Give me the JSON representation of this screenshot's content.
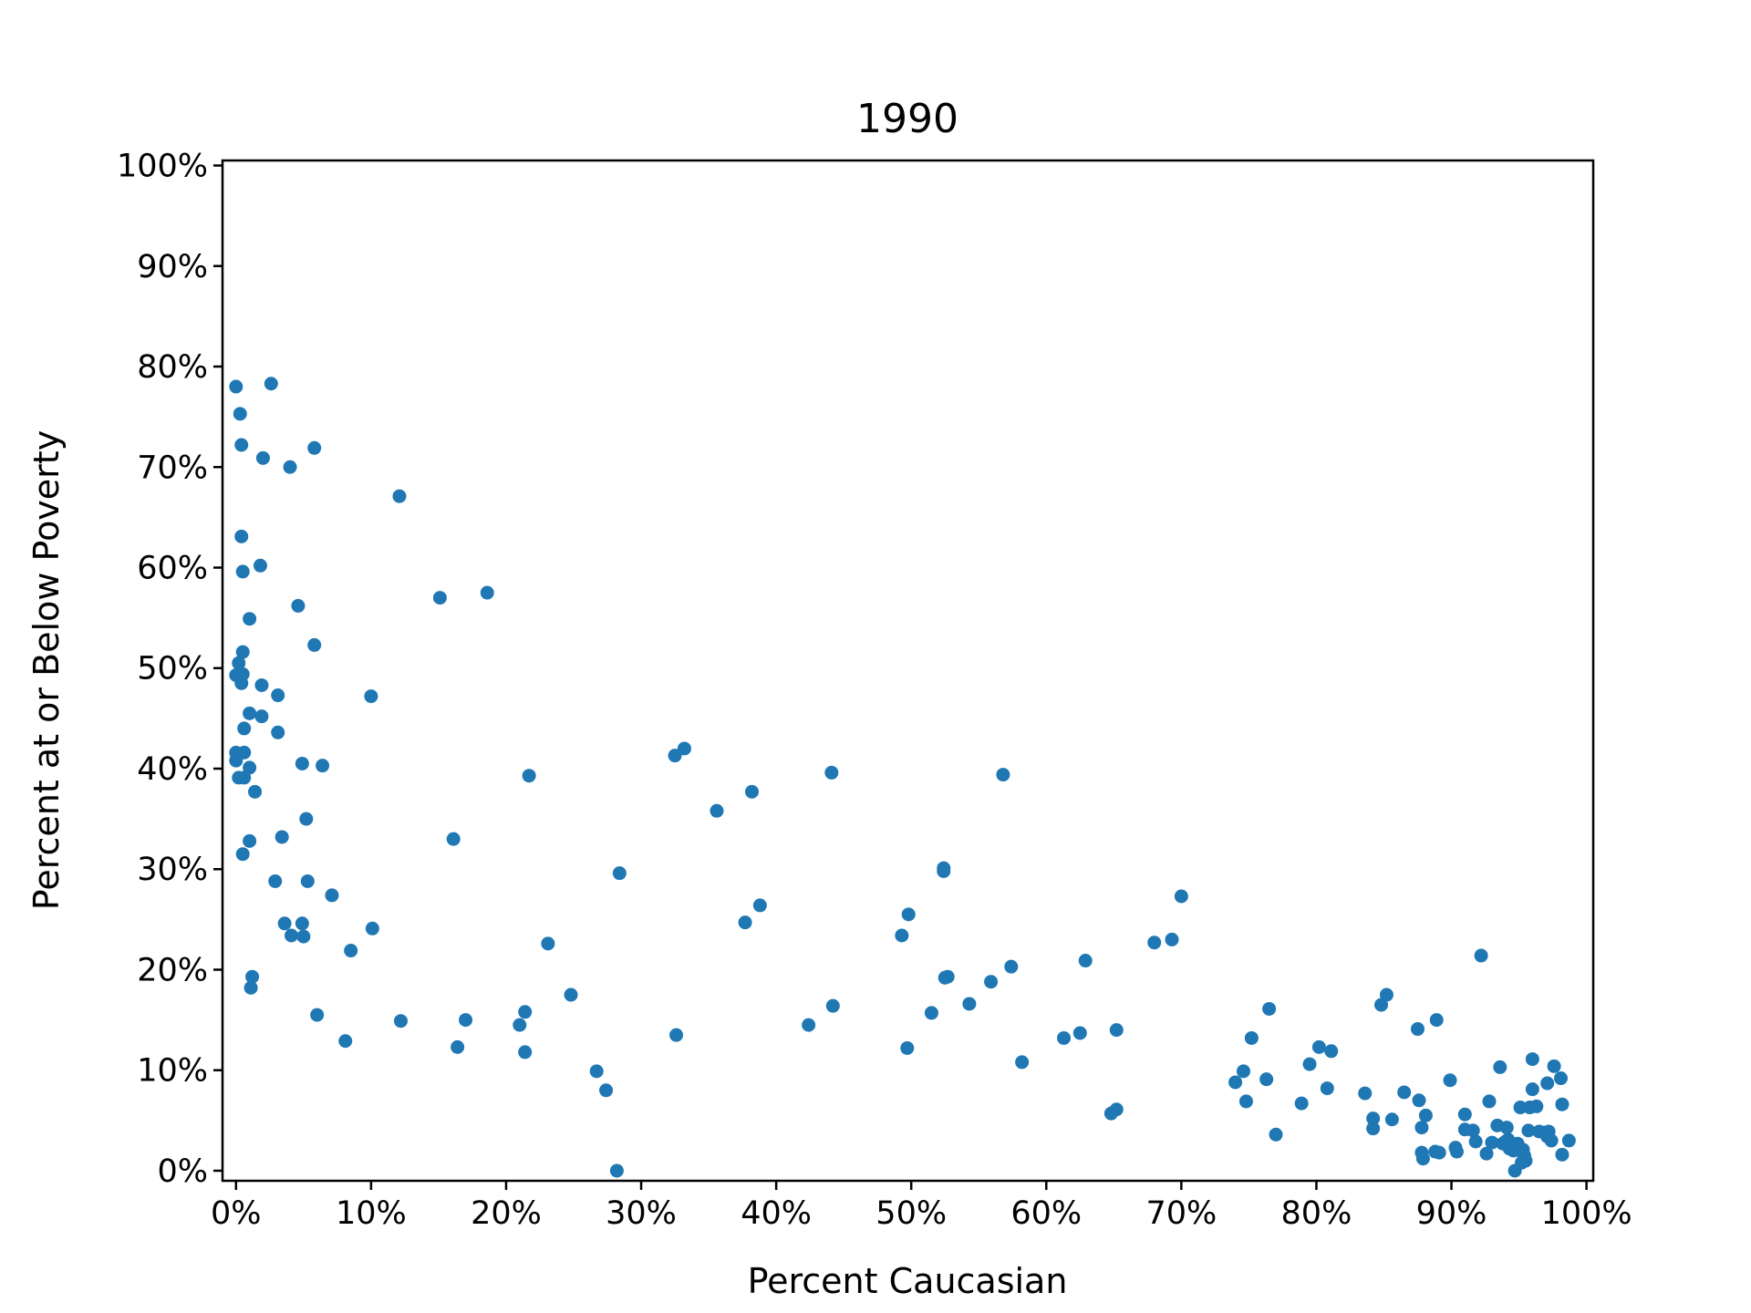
{
  "chart_data": {
    "type": "scatter",
    "title": "1990",
    "xlabel": "Percent Caucasian",
    "ylabel": "Percent at or Below Poverty",
    "xlim": [
      -1,
      100.5
    ],
    "ylim": [
      -1,
      100.5
    ],
    "x_ticks": [
      "0%",
      "10%",
      "20%",
      "30%",
      "40%",
      "50%",
      "60%",
      "70%",
      "80%",
      "90%",
      "100%"
    ],
    "y_ticks": [
      "0%",
      "10%",
      "20%",
      "30%",
      "40%",
      "50%",
      "60%",
      "70%",
      "80%",
      "90%",
      "100%"
    ],
    "grid": false,
    "marker_color": "#1f77b4",
    "series": [
      {
        "points": [
          [
            0.0,
            78.0
          ],
          [
            2.6,
            78.3
          ],
          [
            0.3,
            75.3
          ],
          [
            0.4,
            72.2
          ],
          [
            2.0,
            70.9
          ],
          [
            4.0,
            70.0
          ],
          [
            5.8,
            71.9
          ],
          [
            12.1,
            67.1
          ],
          [
            0.4,
            63.1
          ],
          [
            1.8,
            60.2
          ],
          [
            0.5,
            59.6
          ],
          [
            15.1,
            57.0
          ],
          [
            18.6,
            57.5
          ],
          [
            4.6,
            56.2
          ],
          [
            1.0,
            54.9
          ],
          [
            5.8,
            52.3
          ],
          [
            0.5,
            51.6
          ],
          [
            0.2,
            50.5
          ],
          [
            0.0,
            49.3
          ],
          [
            0.5,
            49.4
          ],
          [
            0.4,
            48.5
          ],
          [
            1.9,
            48.3
          ],
          [
            3.1,
            47.3
          ],
          [
            10.0,
            47.2
          ],
          [
            1.0,
            45.5
          ],
          [
            1.9,
            45.2
          ],
          [
            0.6,
            44.0
          ],
          [
            3.1,
            43.6
          ],
          [
            0.0,
            41.6
          ],
          [
            0.6,
            41.6
          ],
          [
            0.0,
            40.8
          ],
          [
            1.0,
            40.1
          ],
          [
            4.9,
            40.5
          ],
          [
            6.4,
            40.3
          ],
          [
            0.2,
            39.1
          ],
          [
            0.6,
            39.1
          ],
          [
            21.7,
            39.3
          ],
          [
            1.4,
            37.7
          ],
          [
            5.2,
            35.0
          ],
          [
            1.0,
            32.8
          ],
          [
            3.4,
            33.2
          ],
          [
            16.1,
            33.0
          ],
          [
            0.5,
            31.5
          ],
          [
            2.9,
            28.8
          ],
          [
            5.3,
            28.8
          ],
          [
            7.1,
            27.4
          ],
          [
            3.6,
            24.6
          ],
          [
            4.9,
            24.6
          ],
          [
            4.1,
            23.4
          ],
          [
            5.0,
            23.3
          ],
          [
            10.1,
            24.1
          ],
          [
            8.5,
            21.9
          ],
          [
            1.2,
            19.3
          ],
          [
            1.1,
            18.2
          ],
          [
            6.0,
            15.5
          ],
          [
            8.1,
            12.9
          ],
          [
            12.2,
            14.9
          ],
          [
            16.4,
            12.3
          ],
          [
            17.0,
            15.0
          ],
          [
            21.0,
            14.5
          ],
          [
            21.4,
            15.8
          ],
          [
            21.4,
            11.8
          ],
          [
            23.1,
            22.6
          ],
          [
            24.8,
            17.5
          ],
          [
            26.7,
            9.9
          ],
          [
            27.4,
            8.0
          ],
          [
            28.2,
            0.0
          ],
          [
            28.4,
            29.6
          ],
          [
            32.5,
            41.3
          ],
          [
            33.2,
            42.0
          ],
          [
            32.6,
            13.5
          ],
          [
            35.6,
            35.8
          ],
          [
            38.2,
            37.7
          ],
          [
            37.7,
            24.7
          ],
          [
            38.8,
            26.4
          ],
          [
            42.4,
            14.5
          ],
          [
            44.1,
            39.6
          ],
          [
            44.2,
            16.4
          ],
          [
            49.3,
            23.4
          ],
          [
            49.8,
            25.5
          ],
          [
            49.7,
            12.2
          ],
          [
            51.5,
            15.7
          ],
          [
            52.4,
            30.1
          ],
          [
            52.4,
            29.8
          ],
          [
            52.5,
            19.2
          ],
          [
            52.7,
            19.3
          ],
          [
            54.3,
            16.6
          ],
          [
            55.9,
            18.8
          ],
          [
            56.8,
            39.4
          ],
          [
            57.4,
            20.3
          ],
          [
            58.2,
            10.8
          ],
          [
            61.3,
            13.2
          ],
          [
            62.5,
            13.7
          ],
          [
            62.9,
            20.9
          ],
          [
            64.8,
            5.7
          ],
          [
            65.2,
            14.0
          ],
          [
            65.2,
            6.1
          ],
          [
            68.0,
            22.7
          ],
          [
            69.3,
            23.0
          ],
          [
            70.0,
            27.3
          ],
          [
            74.0,
            8.8
          ],
          [
            74.6,
            9.9
          ],
          [
            74.8,
            6.9
          ],
          [
            75.2,
            13.2
          ],
          [
            76.3,
            9.1
          ],
          [
            76.5,
            16.1
          ],
          [
            77.0,
            3.6
          ],
          [
            78.9,
            6.7
          ],
          [
            79.5,
            10.6
          ],
          [
            80.2,
            12.3
          ],
          [
            80.8,
            8.2
          ],
          [
            81.1,
            11.9
          ],
          [
            83.6,
            7.7
          ],
          [
            84.2,
            5.2
          ],
          [
            84.2,
            4.2
          ],
          [
            84.8,
            16.5
          ],
          [
            85.2,
            17.5
          ],
          [
            85.6,
            5.1
          ],
          [
            86.5,
            7.8
          ],
          [
            87.5,
            14.1
          ],
          [
            87.6,
            7.0
          ],
          [
            87.8,
            4.3
          ],
          [
            87.8,
            1.8
          ],
          [
            88.1,
            5.5
          ],
          [
            87.9,
            1.2
          ],
          [
            88.8,
            1.9
          ],
          [
            88.9,
            15.0
          ],
          [
            89.1,
            1.8
          ],
          [
            89.9,
            9.0
          ],
          [
            90.3,
            2.3
          ],
          [
            90.4,
            1.9
          ],
          [
            91.0,
            5.6
          ],
          [
            91.0,
            4.1
          ],
          [
            91.6,
            4.0
          ],
          [
            91.8,
            2.9
          ],
          [
            92.2,
            21.4
          ],
          [
            92.6,
            1.7
          ],
          [
            92.8,
            6.9
          ],
          [
            93.0,
            2.8
          ],
          [
            93.4,
            4.5
          ],
          [
            93.6,
            10.3
          ],
          [
            93.8,
            2.7
          ],
          [
            94.0,
            2.9
          ],
          [
            94.1,
            4.3
          ],
          [
            94.2,
            3.1
          ],
          [
            94.3,
            2.2
          ],
          [
            94.5,
            2.5
          ],
          [
            94.6,
            2.0
          ],
          [
            94.7,
            0.0
          ],
          [
            94.9,
            2.7
          ],
          [
            95.1,
            6.3
          ],
          [
            95.2,
            0.8
          ],
          [
            95.3,
            2.1
          ],
          [
            95.4,
            1.5
          ],
          [
            95.5,
            1.0
          ],
          [
            95.7,
            4.0
          ],
          [
            95.8,
            6.3
          ],
          [
            96.0,
            11.1
          ],
          [
            96.0,
            8.1
          ],
          [
            96.3,
            6.4
          ],
          [
            96.5,
            3.9
          ],
          [
            96.9,
            3.8
          ],
          [
            97.1,
            3.4
          ],
          [
            97.2,
            3.9
          ],
          [
            97.4,
            3.0
          ],
          [
            97.1,
            8.7
          ],
          [
            97.6,
            10.4
          ],
          [
            98.1,
            9.2
          ],
          [
            98.2,
            6.6
          ],
          [
            98.2,
            1.6
          ],
          [
            98.7,
            3.0
          ]
        ]
      }
    ]
  }
}
